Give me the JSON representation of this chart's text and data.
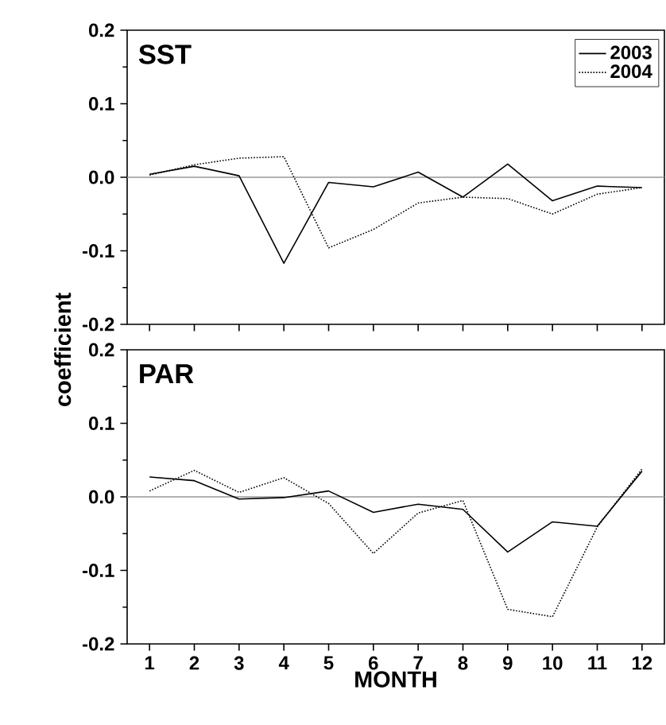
{
  "chart_data": [
    {
      "type": "line",
      "title": "SST",
      "x": [
        1,
        2,
        3,
        4,
        5,
        6,
        7,
        8,
        9,
        10,
        11,
        12
      ],
      "series": [
        {
          "name": "2003",
          "color": "#000000",
          "line_style": "solid",
          "values": [
            0.004,
            0.015,
            0.002,
            -0.117,
            -0.007,
            -0.013,
            0.007,
            -0.027,
            0.018,
            -0.032,
            -0.012,
            -0.014
          ]
        },
        {
          "name": "2004",
          "color": "#000000",
          "line_style": "dotted",
          "values": [
            0.003,
            0.017,
            0.026,
            0.028,
            -0.096,
            -0.071,
            -0.035,
            -0.027,
            -0.029,
            -0.05,
            -0.023,
            -0.014
          ]
        }
      ],
      "xlim": [
        0.5,
        12.5
      ],
      "xticks": [
        1,
        2,
        3,
        4,
        5,
        6,
        7,
        8,
        9,
        10,
        11,
        12
      ],
      "ylim": [
        -0.2,
        0.2
      ],
      "yticks": [
        -0.2,
        -0.1,
        {
          "value": 0,
          "label": "0.0"
        },
        0.1,
        0.2
      ],
      "ref_lines": [
        {
          "axis": "y",
          "value": 0,
          "color": "#999999"
        }
      ],
      "legend": "top right",
      "tick_labels": "y",
      "marker": "none"
    },
    {
      "type": "line",
      "title": "PAR",
      "xlabel": "MONTH",
      "ylabel": "coefficient",
      "x": [
        1,
        2,
        3,
        4,
        5,
        6,
        7,
        8,
        9,
        10,
        11,
        12
      ],
      "series": [
        {
          "color": "#000000",
          "line_style": "solid",
          "values": [
            0.027,
            0.022,
            -0.003,
            -0.001,
            0.008,
            -0.021,
            -0.01,
            -0.017,
            -0.075,
            -0.034,
            -0.04,
            0.035
          ]
        },
        {
          "color": "#000000",
          "line_style": "dotted",
          "values": [
            0.008,
            0.036,
            0.006,
            0.026,
            -0.009,
            -0.077,
            -0.022,
            -0.005,
            -0.153,
            -0.163,
            -0.041,
            0.038
          ]
        }
      ],
      "xlim": [
        0.5,
        12.5
      ],
      "xticks": [
        1,
        2,
        3,
        4,
        5,
        6,
        7,
        8,
        9,
        10,
        11,
        12
      ],
      "ylim": [
        -0.2,
        0.2
      ],
      "yticks": [
        -0.2,
        -0.1,
        {
          "value": 0,
          "label": "0.0"
        },
        0.1,
        0.2
      ],
      "ref_lines": [
        {
          "axis": "y",
          "value": 0,
          "color": "#999999"
        }
      ],
      "marker": "none"
    }
  ]
}
